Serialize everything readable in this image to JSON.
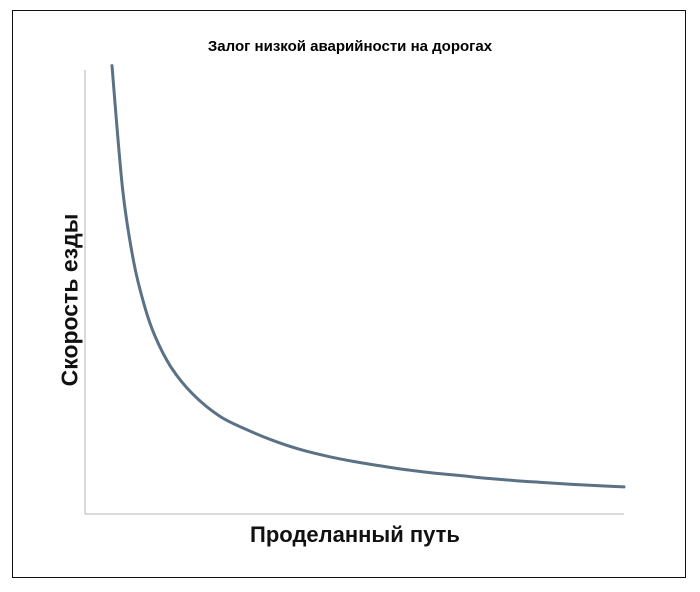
{
  "chart_data": {
    "type": "line",
    "title": "Залог низкой аварийности на дорогах",
    "xlabel": "Проделанный путь",
    "ylabel": "Скорость езды",
    "xlim": [
      0,
      1
    ],
    "ylim": [
      0,
      1
    ],
    "grid": false,
    "ticks": false,
    "series": [
      {
        "name": "",
        "color": "#5a7186",
        "x": [
          0.05,
          0.07,
          0.09,
          0.11,
          0.13,
          0.16,
          0.2,
          0.25,
          0.3,
          0.35,
          0.4,
          0.45,
          0.5,
          0.55,
          0.6,
          0.65,
          0.7,
          0.75,
          0.8,
          0.85,
          0.9,
          0.95,
          1.0
        ],
        "y": [
          1.01,
          0.73,
          0.57,
          0.47,
          0.4,
          0.33,
          0.27,
          0.22,
          0.19,
          0.165,
          0.145,
          0.13,
          0.118,
          0.108,
          0.099,
          0.092,
          0.086,
          0.08,
          0.075,
          0.071,
          0.067,
          0.064,
          0.061
        ]
      }
    ]
  }
}
